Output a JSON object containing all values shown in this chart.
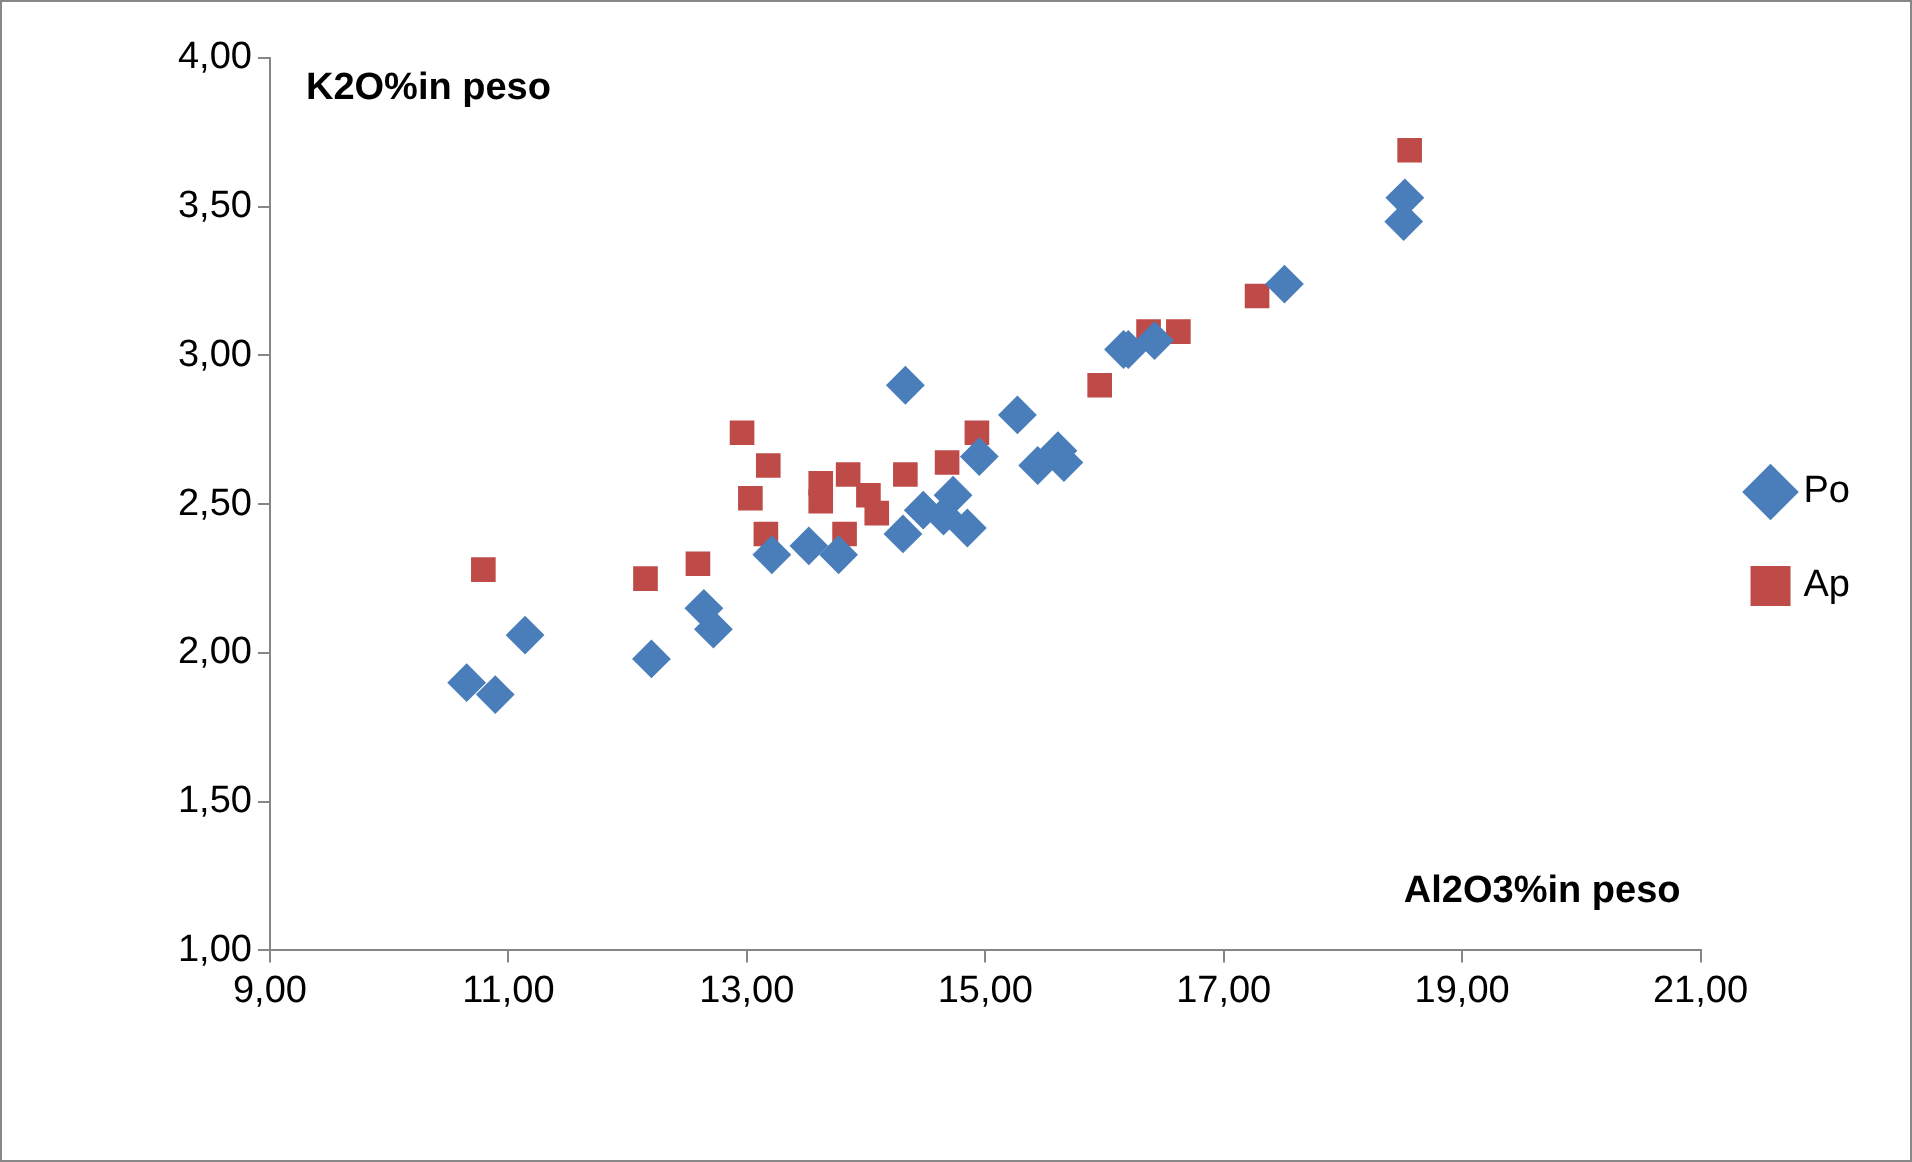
{
  "chart_data": {
    "type": "scatter",
    "xlabel": "Al2O3%in peso",
    "ylabel": "K2O%in peso",
    "xlim": [
      9,
      21
    ],
    "xticks": [
      {
        "value": 9,
        "label": "9,00"
      },
      {
        "value": 11,
        "label": "11,00"
      },
      {
        "value": 13,
        "label": "13,00"
      },
      {
        "value": 15,
        "label": "15,00"
      },
      {
        "value": 17,
        "label": "17,00"
      },
      {
        "value": 19,
        "label": "19,00"
      },
      {
        "value": 21,
        "label": "21,00"
      }
    ],
    "ylim": [
      1,
      4
    ],
    "yticks": [
      {
        "value": 1,
        "label": "1,00"
      },
      {
        "value": 1.5,
        "label": "1,50"
      },
      {
        "value": 2,
        "label": "2,00"
      },
      {
        "value": 2.5,
        "label": "2,50"
      },
      {
        "value": 3,
        "label": "3,00"
      },
      {
        "value": 3.5,
        "label": "3,50"
      },
      {
        "value": 4,
        "label": "4,00"
      }
    ],
    "legend": "right",
    "series": [
      {
        "name": "Po",
        "color": "#4a7ebb",
        "marker": "diamond",
        "x": [
          10.65,
          10.89,
          11.14,
          12.2,
          12.64,
          12.72,
          13.21,
          13.52,
          13.77,
          14.33,
          14.31,
          14.48,
          14.73,
          14.65,
          14.85,
          14.95,
          15.27,
          15.44,
          15.61,
          15.66,
          16.16,
          16.2,
          16.42,
          17.51,
          18.52,
          18.51
        ],
        "values": [
          1.9,
          1.86,
          2.06,
          1.98,
          2.15,
          2.08,
          2.33,
          2.36,
          2.33,
          2.9,
          2.4,
          2.48,
          2.53,
          2.46,
          2.42,
          2.66,
          2.8,
          2.63,
          2.68,
          2.64,
          3.02,
          3.02,
          3.05,
          3.24,
          3.53,
          3.45
        ]
      },
      {
        "name": "Ap",
        "color": "#be4b48",
        "marker": "square",
        "x": [
          10.79,
          12.15,
          12.59,
          12.96,
          13.18,
          13.03,
          13.16,
          13.62,
          13.62,
          13.85,
          13.82,
          14.02,
          14.09,
          14.33,
          14.68,
          14.93,
          15.96,
          16.37,
          16.62,
          17.28,
          18.56
        ],
        "values": [
          2.28,
          2.25,
          2.3,
          2.74,
          2.63,
          2.52,
          2.4,
          2.57,
          2.51,
          2.6,
          2.4,
          2.53,
          2.47,
          2.6,
          2.64,
          2.74,
          2.9,
          3.08,
          3.08,
          3.2,
          3.69
        ]
      }
    ]
  }
}
